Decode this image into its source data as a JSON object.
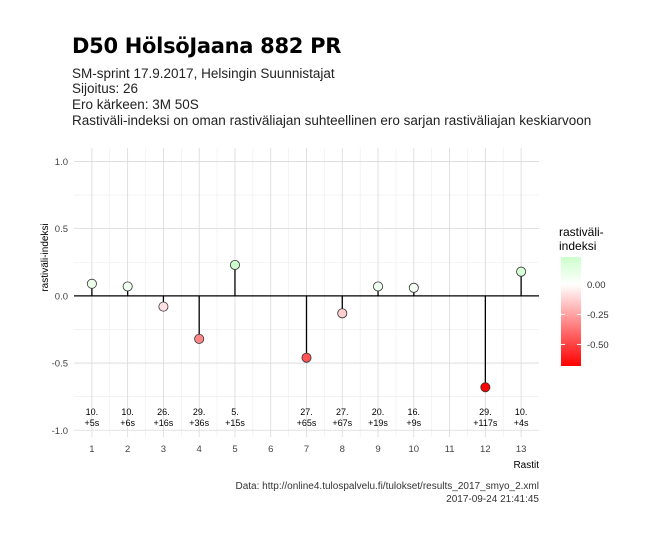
{
  "header": {
    "title": "D50 HölsöJaana 882 PR",
    "subtitle_lines": [
      "SM-sprint 17.9.2017, Helsingin Suunnistajat",
      "Sijoitus: 26",
      "Ero kärkeen: 3M 50S",
      "Rastiväli-indeksi on oman rastiväliajan suhteellinen ero sarjan rastiväliajan keskiarvoon"
    ]
  },
  "footer": {
    "source": "Data: http://online4.tulospalvelu.fi/tulokset/results_2017_smyo_2.xml",
    "timestamp": "2017-09-24 21:41:45"
  },
  "chart_data": {
    "type": "scatter",
    "xlabel": "Rastit",
    "ylabel": "rastiväli-indeksi",
    "xlim": [
      0.5,
      13.5
    ],
    "ylim": [
      -1.05,
      1.1
    ],
    "x_ticks": [
      1,
      2,
      3,
      4,
      5,
      6,
      7,
      8,
      9,
      10,
      11,
      12,
      13
    ],
    "y_ticks": [
      1.0,
      0.5,
      0.0,
      -0.5,
      -1.0
    ],
    "y_tick_labels": [
      "1.0",
      "0.5",
      "0.0",
      "-0.5",
      "-1.0"
    ],
    "grid": true,
    "points": [
      {
        "x": 1,
        "y": 0.09,
        "rank": "10.",
        "diff": "+5s"
      },
      {
        "x": 2,
        "y": 0.07,
        "rank": "10.",
        "diff": "+6s"
      },
      {
        "x": 3,
        "y": -0.08,
        "rank": "26.",
        "diff": "+16s"
      },
      {
        "x": 4,
        "y": -0.32,
        "rank": "29.",
        "diff": "+36s"
      },
      {
        "x": 5,
        "y": 0.23,
        "rank": "5.",
        "diff": "+15s"
      },
      {
        "x": 7,
        "y": -0.46,
        "rank": "27.",
        "diff": "+65s"
      },
      {
        "x": 8,
        "y": -0.13,
        "rank": "27.",
        "diff": "+67s"
      },
      {
        "x": 9,
        "y": 0.07,
        "rank": "20.",
        "diff": "+19s"
      },
      {
        "x": 10,
        "y": 0.06,
        "rank": "16.",
        "diff": "+9s"
      },
      {
        "x": 12,
        "y": -0.68,
        "rank": "29.",
        "diff": "+117s"
      },
      {
        "x": 13,
        "y": 0.18,
        "rank": "10.",
        "diff": "+4s"
      }
    ],
    "legend": {
      "title_lines": [
        "rastiväli-",
        "indeksi"
      ],
      "position": "right",
      "range": [
        -0.68,
        0.23
      ],
      "ticks": [
        0.0,
        -0.25,
        -0.5
      ],
      "tick_labels": [
        "0.00",
        "-0.25",
        "-0.50"
      ],
      "colors": {
        "low": "#ff0000",
        "mid": "#ffffff",
        "high": "#ccffcc"
      }
    }
  }
}
